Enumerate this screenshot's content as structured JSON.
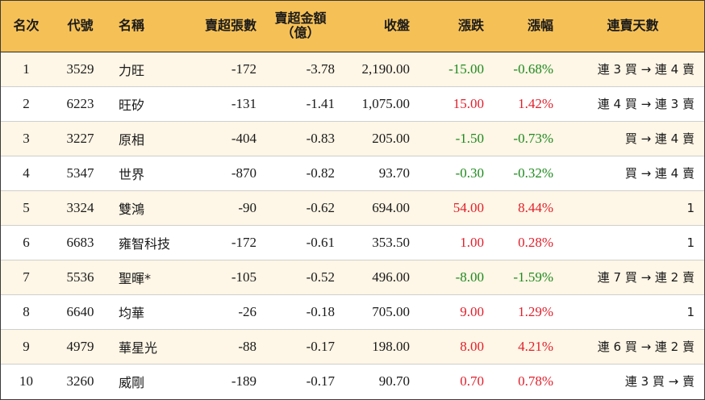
{
  "header": {
    "rank": "名次",
    "code": "代號",
    "name": "名稱",
    "net_sell_lots": "賣超張數",
    "net_sell_amount_line1": "賣超金額",
    "net_sell_amount_line2": "（億）",
    "close": "收盤",
    "change": "漲跌",
    "change_pct": "漲幅",
    "streak": "連賣天數"
  },
  "colors": {
    "header_bg": "#f5c056",
    "alt_row_bg": "#fef6e6",
    "negative": "#1e8a1e",
    "positive": "#e0202c"
  },
  "rows": [
    {
      "rank": "1",
      "code": "3529",
      "name": "力旺",
      "lots": "-172",
      "amount": "-3.78",
      "close": "2,190.00",
      "change": "-15.00",
      "pct": "-0.68%",
      "streak": "連 3 買 → 連 4 賣"
    },
    {
      "rank": "2",
      "code": "6223",
      "name": "旺矽",
      "lots": "-131",
      "amount": "-1.41",
      "close": "1,075.00",
      "change": "15.00",
      "pct": "1.42%",
      "streak": "連 4 買 → 連 3 賣"
    },
    {
      "rank": "3",
      "code": "3227",
      "name": "原相",
      "lots": "-404",
      "amount": "-0.83",
      "close": "205.00",
      "change": "-1.50",
      "pct": "-0.73%",
      "streak": "買 → 連 4 賣"
    },
    {
      "rank": "4",
      "code": "5347",
      "name": "世界",
      "lots": "-870",
      "amount": "-0.82",
      "close": "93.70",
      "change": "-0.30",
      "pct": "-0.32%",
      "streak": "買 → 連 4 賣"
    },
    {
      "rank": "5",
      "code": "3324",
      "name": "雙鴻",
      "lots": "-90",
      "amount": "-0.62",
      "close": "694.00",
      "change": "54.00",
      "pct": "8.44%",
      "streak": "1"
    },
    {
      "rank": "6",
      "code": "6683",
      "name": "雍智科技",
      "lots": "-172",
      "amount": "-0.61",
      "close": "353.50",
      "change": "1.00",
      "pct": "0.28%",
      "streak": "1"
    },
    {
      "rank": "7",
      "code": "5536",
      "name": "聖暉*",
      "lots": "-105",
      "amount": "-0.52",
      "close": "496.00",
      "change": "-8.00",
      "pct": "-1.59%",
      "streak": "連 7 買 → 連 2 賣"
    },
    {
      "rank": "8",
      "code": "6640",
      "name": "均華",
      "lots": "-26",
      "amount": "-0.18",
      "close": "705.00",
      "change": "9.00",
      "pct": "1.29%",
      "streak": "1"
    },
    {
      "rank": "9",
      "code": "4979",
      "name": "華星光",
      "lots": "-88",
      "amount": "-0.17",
      "close": "198.00",
      "change": "8.00",
      "pct": "4.21%",
      "streak": "連 6 買 → 連 2 賣"
    },
    {
      "rank": "10",
      "code": "3260",
      "name": "威剛",
      "lots": "-189",
      "amount": "-0.17",
      "close": "90.70",
      "change": "0.70",
      "pct": "0.78%",
      "streak": "連 3 買 → 賣"
    }
  ]
}
